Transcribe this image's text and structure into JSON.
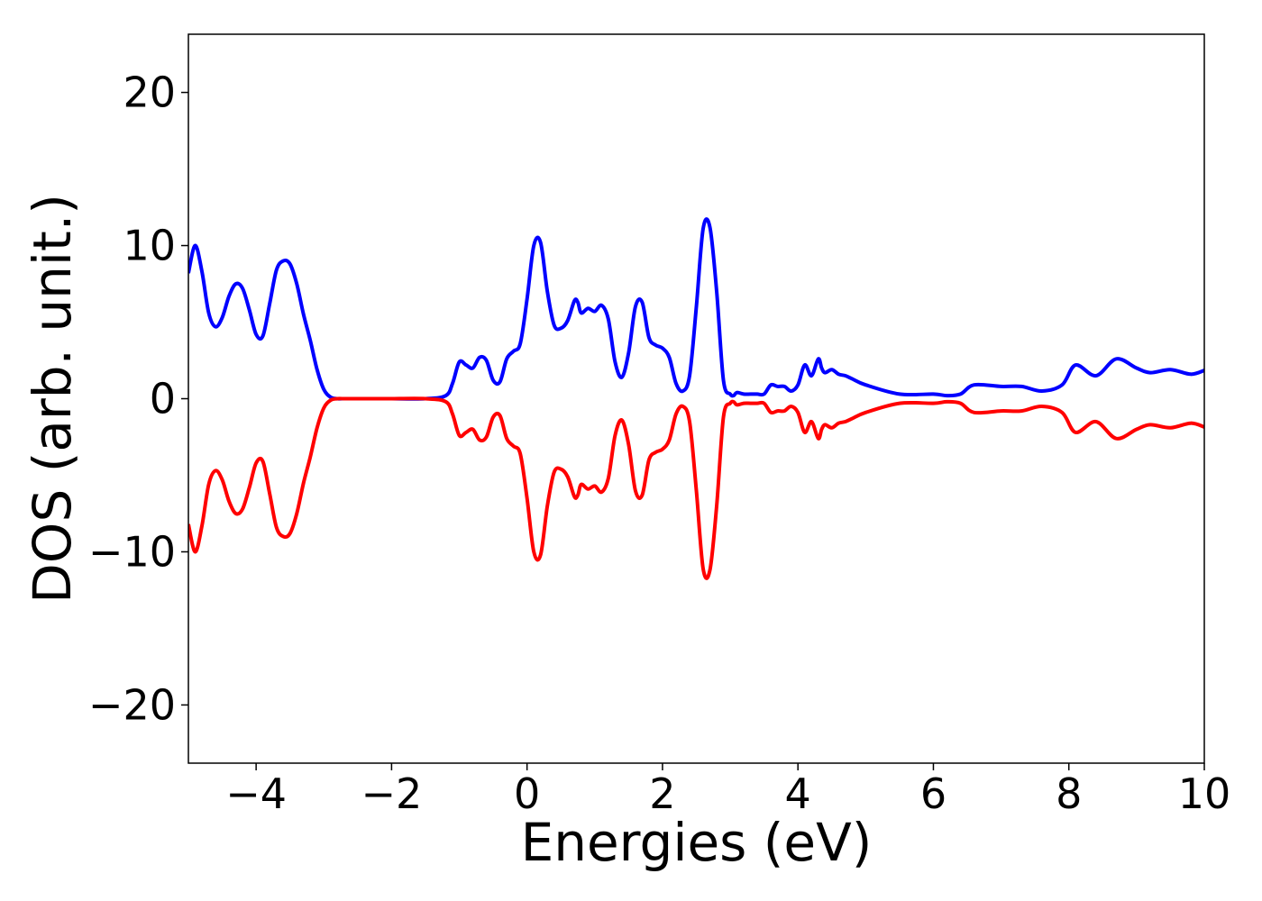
{
  "chart_data": {
    "type": "line",
    "title": "",
    "xlabel": "Energies (eV)",
    "ylabel": "DOS (arb. unit.)",
    "xlim": [
      -5,
      10
    ],
    "ylim": [
      -23.8,
      23.8
    ],
    "xticks": [
      -4,
      -2,
      0,
      2,
      4,
      6,
      8,
      10
    ],
    "yticks": [
      -20,
      -10,
      0,
      10,
      20
    ],
    "xtick_labels": [
      "−4",
      "−2",
      "0",
      "2",
      "4",
      "6",
      "8",
      "10"
    ],
    "ytick_labels": [
      "−20",
      "−10",
      "0",
      "10",
      "20"
    ],
    "grid": false,
    "legend": false,
    "series": [
      {
        "color": "#0000ff",
        "x": [
          -5.0,
          -4.9,
          -4.8,
          -4.7,
          -4.6,
          -4.5,
          -4.4,
          -4.3,
          -4.2,
          -4.1,
          -4.0,
          -3.9,
          -3.8,
          -3.7,
          -3.6,
          -3.5,
          -3.4,
          -3.3,
          -3.2,
          -3.1,
          -3.0,
          -2.9,
          -2.8,
          -2.7,
          -2.6,
          -2.5,
          -2.4,
          -2.3,
          -2.2,
          -2.1,
          -2.0,
          -1.5,
          -1.2,
          -1.1,
          -1.0,
          -0.9,
          -0.8,
          -0.7,
          -0.6,
          -0.5,
          -0.4,
          -0.3,
          -0.2,
          -0.1,
          0.0,
          0.1,
          0.2,
          0.3,
          0.4,
          0.5,
          0.6,
          0.7,
          0.75,
          0.8,
          0.9,
          1.0,
          1.1,
          1.2,
          1.3,
          1.4,
          1.5,
          1.6,
          1.7,
          1.8,
          1.9,
          2.0,
          2.1,
          2.2,
          2.3,
          2.4,
          2.5,
          2.6,
          2.7,
          2.8,
          2.9,
          3.0,
          3.05,
          3.1,
          3.2,
          3.3,
          3.4,
          3.5,
          3.6,
          3.7,
          3.8,
          3.9,
          4.0,
          4.1,
          4.2,
          4.3,
          4.35,
          4.4,
          4.5,
          4.6,
          4.7,
          4.8,
          5.0,
          5.5,
          6.0,
          6.2,
          6.4,
          6.6,
          7.0,
          7.3,
          7.6,
          7.9,
          8.1,
          8.4,
          8.7,
          9.0,
          9.2,
          9.5,
          9.8,
          10.0
        ],
        "y": [
          8.2,
          10.0,
          8.3,
          5.6,
          4.7,
          5.3,
          6.7,
          7.5,
          7.2,
          5.8,
          4.2,
          4.1,
          6.2,
          8.4,
          9.0,
          8.8,
          7.5,
          5.5,
          3.8,
          1.9,
          0.6,
          0.1,
          0.0,
          0.0,
          0.0,
          0.0,
          0.0,
          0.0,
          0.0,
          0.0,
          0.0,
          0.0,
          0.2,
          1.0,
          2.4,
          2.2,
          2.0,
          2.7,
          2.5,
          1.2,
          1.1,
          2.6,
          3.1,
          3.6,
          6.5,
          10.0,
          10.2,
          7.0,
          4.8,
          4.6,
          5.1,
          6.4,
          6.3,
          5.6,
          5.9,
          5.7,
          6.1,
          5.2,
          2.4,
          1.4,
          3.0,
          6.0,
          6.3,
          4.0,
          3.5,
          3.3,
          2.7,
          1.0,
          0.5,
          1.5,
          6.0,
          11.1,
          11.2,
          7.0,
          1.2,
          0.3,
          0.2,
          0.4,
          0.3,
          0.3,
          0.3,
          0.3,
          0.9,
          0.8,
          0.8,
          0.5,
          0.9,
          2.2,
          1.5,
          2.6,
          2.0,
          1.7,
          1.9,
          1.6,
          1.5,
          1.3,
          0.9,
          0.3,
          0.3,
          0.2,
          0.3,
          0.9,
          0.8,
          0.8,
          0.5,
          0.9,
          2.2,
          1.5,
          2.6,
          2.0,
          1.7,
          1.9,
          1.6,
          1.85
        ]
      },
      {
        "color": "#ff0000",
        "x": [
          -5.0,
          -4.9,
          -4.8,
          -4.7,
          -4.6,
          -4.5,
          -4.4,
          -4.3,
          -4.2,
          -4.1,
          -4.0,
          -3.9,
          -3.8,
          -3.7,
          -3.6,
          -3.5,
          -3.4,
          -3.3,
          -3.2,
          -3.1,
          -3.0,
          -2.9,
          -2.8,
          -2.7,
          -2.6,
          -2.5,
          -2.4,
          -2.3,
          -2.2,
          -2.1,
          -2.0,
          -1.5,
          -1.2,
          -1.1,
          -1.0,
          -0.9,
          -0.8,
          -0.7,
          -0.6,
          -0.5,
          -0.4,
          -0.3,
          -0.2,
          -0.1,
          0.0,
          0.1,
          0.2,
          0.3,
          0.4,
          0.5,
          0.6,
          0.7,
          0.75,
          0.8,
          0.9,
          1.0,
          1.1,
          1.2,
          1.3,
          1.4,
          1.5,
          1.6,
          1.7,
          1.8,
          1.9,
          2.0,
          2.1,
          2.2,
          2.3,
          2.4,
          2.5,
          2.6,
          2.7,
          2.8,
          2.9,
          3.0,
          3.05,
          3.1,
          3.2,
          3.3,
          3.4,
          3.5,
          3.6,
          3.7,
          3.8,
          3.9,
          4.0,
          4.1,
          4.2,
          4.3,
          4.35,
          4.4,
          4.5,
          4.6,
          4.7,
          4.8,
          5.0,
          5.5,
          6.0,
          6.2,
          6.4,
          6.6,
          7.0,
          7.3,
          7.6,
          7.9,
          8.1,
          8.4,
          8.7,
          9.0,
          9.2,
          9.5,
          9.8,
          10.0
        ],
        "y": [
          -8.2,
          -10.0,
          -8.3,
          -5.6,
          -4.7,
          -5.3,
          -6.7,
          -7.5,
          -7.2,
          -5.8,
          -4.2,
          -4.1,
          -6.2,
          -8.4,
          -9.0,
          -8.8,
          -7.5,
          -5.5,
          -3.8,
          -1.9,
          -0.6,
          -0.1,
          0.0,
          0.0,
          0.0,
          0.0,
          0.0,
          0.0,
          0.0,
          0.0,
          0.0,
          0.0,
          -0.2,
          -1.0,
          -2.4,
          -2.2,
          -2.0,
          -2.7,
          -2.5,
          -1.2,
          -1.1,
          -2.6,
          -3.1,
          -3.6,
          -6.5,
          -10.0,
          -10.2,
          -7.0,
          -4.8,
          -4.6,
          -5.1,
          -6.4,
          -6.3,
          -5.6,
          -5.9,
          -5.7,
          -6.1,
          -5.2,
          -2.4,
          -1.4,
          -3.0,
          -6.0,
          -6.3,
          -4.0,
          -3.5,
          -3.3,
          -2.7,
          -1.0,
          -0.5,
          -1.5,
          -6.0,
          -11.1,
          -11.2,
          -7.0,
          -1.2,
          -0.3,
          -0.2,
          -0.4,
          -0.3,
          -0.3,
          -0.3,
          -0.3,
          -0.9,
          -0.8,
          -0.8,
          -0.5,
          -0.9,
          -2.2,
          -1.5,
          -2.6,
          -2.0,
          -1.7,
          -1.9,
          -1.6,
          -1.5,
          -1.3,
          -0.9,
          -0.3,
          -0.3,
          -0.2,
          -0.3,
          -0.9,
          -0.8,
          -0.8,
          -0.5,
          -0.9,
          -2.2,
          -1.5,
          -2.6,
          -2.0,
          -1.7,
          -1.9,
          -1.6,
          -1.85
        ]
      }
    ]
  }
}
